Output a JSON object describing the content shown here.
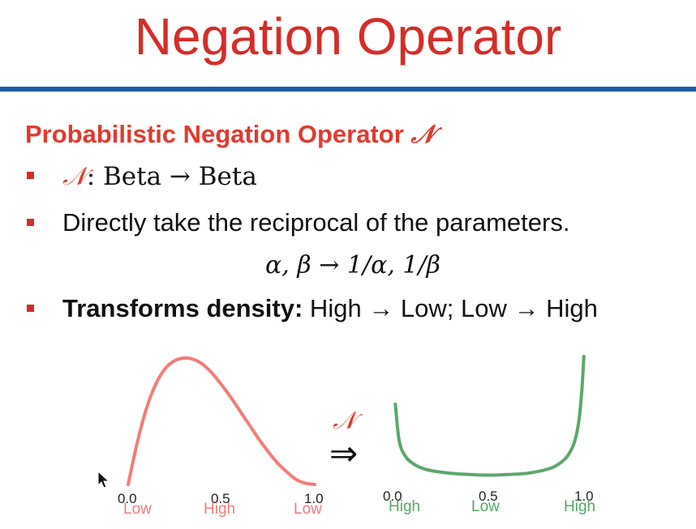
{
  "slide": {
    "title": "Negation Operator",
    "subtitle": "Probabilistic Negation Operator",
    "operator_symbol": "𝒩",
    "bullets": [
      {
        "symbol": "𝒩",
        "colon": ": ",
        "text": "Beta → Beta"
      },
      {
        "text": "Directly take the reciprocal of the parameters."
      },
      {
        "label": "Transforms density:",
        "text": " High → Low; Low → High"
      }
    ],
    "formula": {
      "lhs": "α, β",
      "arrow": " → ",
      "rhs": "1/α, 1/β"
    },
    "implies_symbol": "⇒"
  },
  "chart_data": [
    {
      "type": "line",
      "series": [
        {
          "color": "#f47c78",
          "x": [
            0.0,
            0.05,
            0.1,
            0.15,
            0.2,
            0.25,
            0.3,
            0.35,
            0.4,
            0.45,
            0.5,
            0.55,
            0.6,
            0.65,
            0.7,
            0.75,
            0.8,
            0.85,
            0.9,
            0.95,
            1.0
          ],
          "y": [
            0.0,
            0.34,
            0.61,
            0.8,
            0.92,
            0.98,
            1.0,
            0.99,
            0.95,
            0.88,
            0.79,
            0.69,
            0.58,
            0.47,
            0.36,
            0.26,
            0.17,
            0.1,
            0.04,
            0.01,
            0.0
          ]
        }
      ],
      "xticks": [
        "0.0",
        "0.5",
        "1.0"
      ],
      "tick_values": [
        0.0,
        0.5,
        1.0
      ],
      "density_labels": [
        "Low",
        "High",
        "Low"
      ],
      "xlim": [
        0,
        1
      ]
    },
    {
      "type": "line",
      "series": [
        {
          "color": "#5aa86a",
          "x": [
            0.01,
            0.03,
            0.06,
            0.1,
            0.15,
            0.2,
            0.3,
            0.4,
            0.5,
            0.6,
            0.7,
            0.8,
            0.85,
            0.9,
            0.93,
            0.95,
            0.97,
            0.985,
            0.995
          ],
          "y": [
            0.62,
            0.33,
            0.21,
            0.15,
            0.11,
            0.09,
            0.07,
            0.06,
            0.055,
            0.06,
            0.07,
            0.1,
            0.13,
            0.19,
            0.26,
            0.34,
            0.5,
            0.75,
            1.0
          ]
        }
      ],
      "xticks": [
        "0.0",
        "0.5",
        "1.0"
      ],
      "tick_values": [
        0.0,
        0.5,
        1.0
      ],
      "density_labels": [
        "High",
        "Low",
        "High"
      ],
      "xlim": [
        0,
        1
      ]
    }
  ]
}
